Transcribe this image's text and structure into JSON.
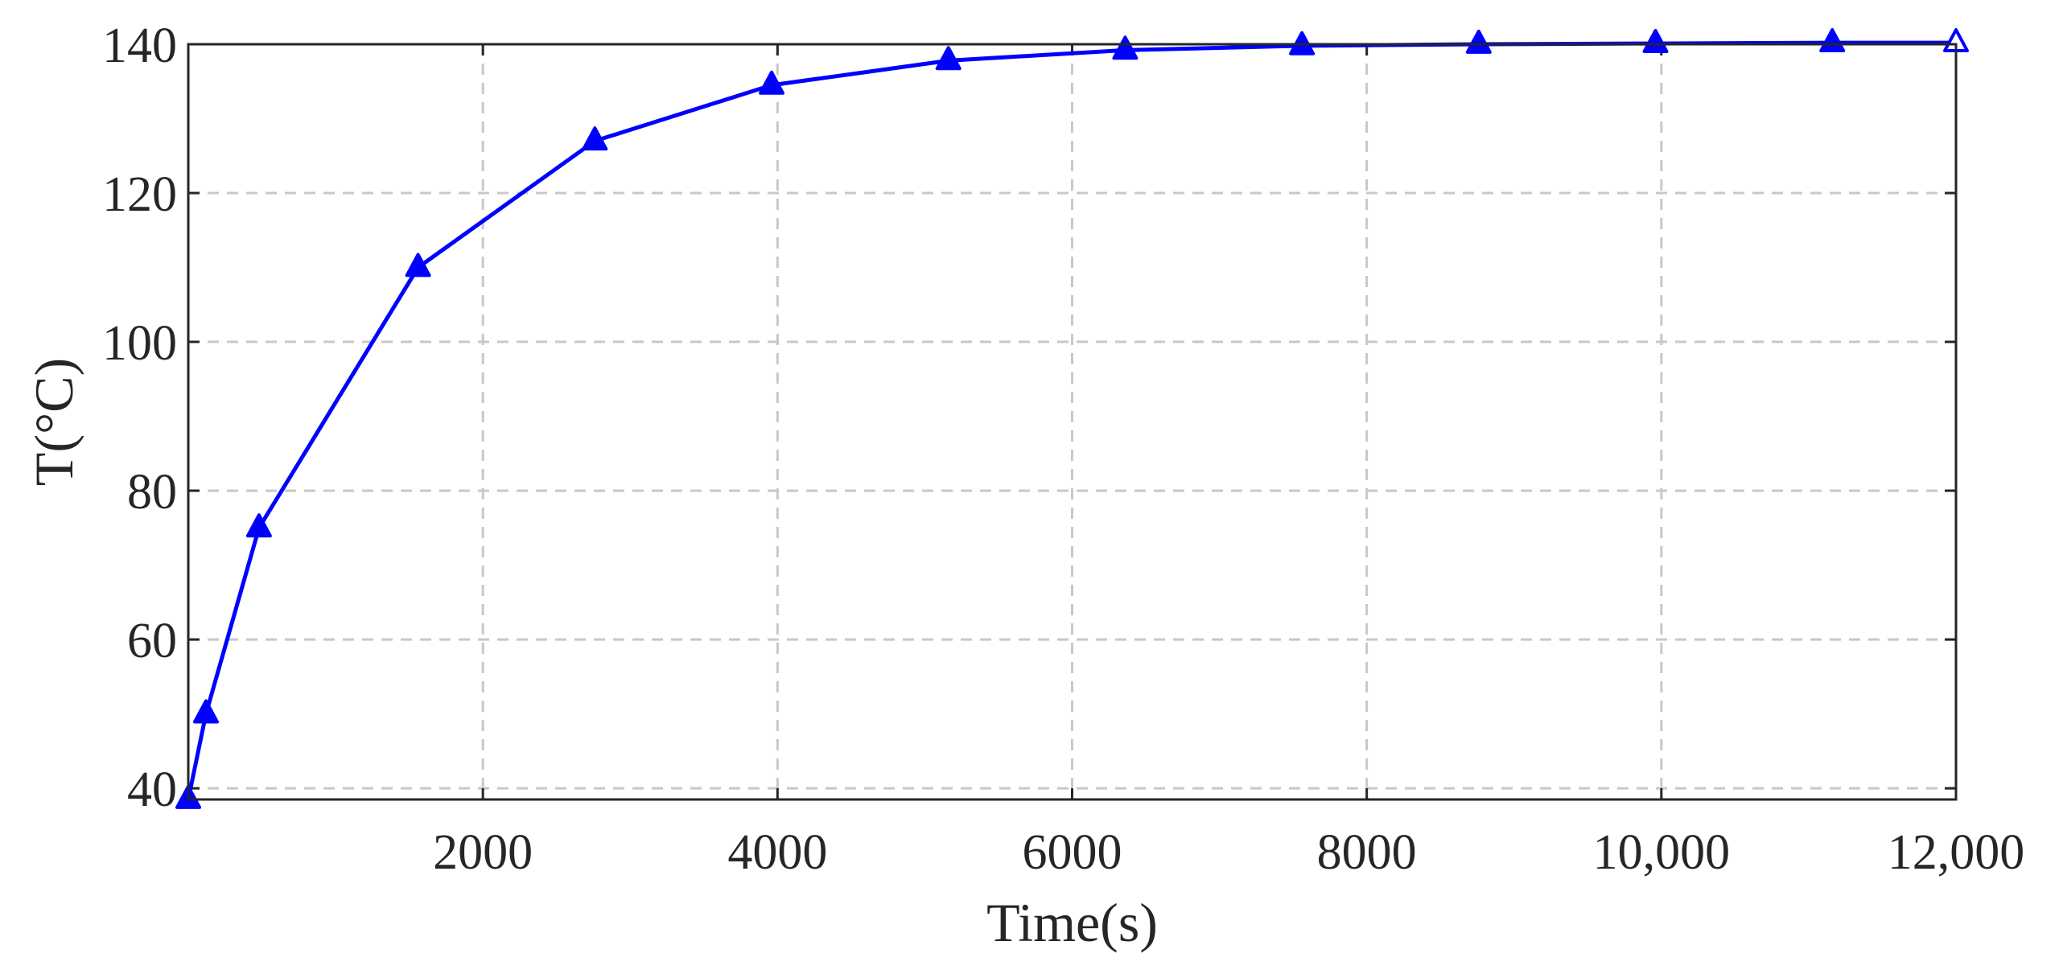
{
  "chart_data": {
    "type": "line",
    "title": "",
    "xlabel": "Time(s)",
    "ylabel": "T(°C)",
    "xlim": [
      0,
      12000
    ],
    "ylim": [
      38.5,
      140
    ],
    "xticks": [
      2000,
      4000,
      6000,
      8000,
      10000,
      12000
    ],
    "xtick_labels": [
      "2000",
      "4000",
      "6000",
      "8000",
      "10,000",
      "12,000"
    ],
    "yticks": [
      40,
      60,
      80,
      100,
      120,
      140
    ],
    "ytick_labels": [
      "40",
      "60",
      "80",
      "100",
      "120",
      "140"
    ],
    "grid": true,
    "series": [
      {
        "color": "#0000ff",
        "marker": "triangle",
        "x": [
          0,
          120,
          480,
          1560,
          2760,
          3960,
          5160,
          6360,
          7560,
          8760,
          9960,
          11160,
          12000
        ],
        "y": [
          38.5,
          50,
          75,
          110,
          127,
          134.5,
          137.8,
          139.2,
          139.8,
          140,
          140.1,
          140.2,
          140.2
        ]
      }
    ]
  }
}
